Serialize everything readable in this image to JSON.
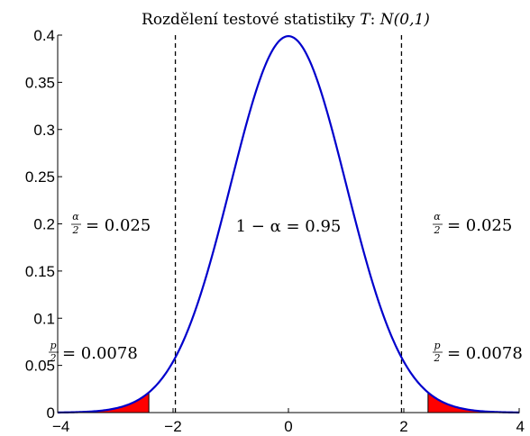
{
  "chart_data": {
    "type": "area",
    "title": "Rozdělení testové statistiky T: N(0,1)",
    "title_parts": {
      "text": "Rozdělení testové statistiky",
      "var": "T",
      "sep": ":",
      "dist": "N(0,1)"
    },
    "xlabel": "",
    "ylabel": "",
    "xlim": [
      -4,
      4
    ],
    "ylim": [
      0,
      0.4
    ],
    "xticks": [
      "−4",
      "−2",
      "0",
      "2",
      "4"
    ],
    "xtick_values": [
      -4,
      -2,
      0,
      2,
      4
    ],
    "yticks": [
      "0",
      "0.05",
      "0.1",
      "0.15",
      "0.2",
      "0.25",
      "0.3",
      "0.35",
      "0.4"
    ],
    "ytick_values": [
      0,
      0.05,
      0.1,
      0.15,
      0.2,
      0.25,
      0.3,
      0.35,
      0.4
    ],
    "grid": false,
    "curve": {
      "name": "N(0,1) density",
      "mean": 0,
      "sd": 1,
      "color": "#0000cc"
    },
    "critical_lines": [
      -1.96,
      1.96
    ],
    "shaded_regions": [
      {
        "from": -4,
        "to": -2.42,
        "color": "#ff0000"
      },
      {
        "from": 2.42,
        "to": 4,
        "color": "#ff0000"
      }
    ],
    "annotations": {
      "left_alpha": {
        "num": "α",
        "den": "2",
        "value": "= 0.025"
      },
      "center": "1 − α = 0.95",
      "right_alpha": {
        "num": "α",
        "den": "2",
        "value": "= 0.025"
      },
      "left_p": {
        "num": "p",
        "den": "2",
        "value": "= 0.0078"
      },
      "right_p": {
        "num": "p",
        "den": "2",
        "value": "= 0.0078"
      }
    }
  }
}
